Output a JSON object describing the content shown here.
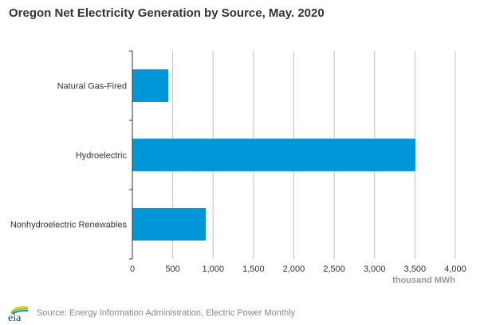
{
  "chart_data": {
    "type": "bar",
    "orientation": "horizontal",
    "title": "Oregon Net Electricity Generation by Source, May. 2020",
    "categories": [
      "Natural Gas-Fired",
      "Hydroelectric",
      "Nonhydroelectric Renewables"
    ],
    "values": [
      445,
      3505,
      910
    ],
    "xlabel": "thousand MWh",
    "ylabel": "",
    "xlim": [
      0,
      4000
    ],
    "xticks": [
      0,
      500,
      1000,
      1500,
      2000,
      2500,
      3000,
      3500,
      4000
    ],
    "xtick_labels": [
      "0",
      "500",
      "1,000",
      "1,500",
      "2,000",
      "2,500",
      "3,000",
      "3,500",
      "4,000"
    ],
    "grid": true,
    "bar_color": "#0096d7",
    "grid_color": "#c0c0c0"
  },
  "footer": {
    "logo_text": "eia",
    "source": "Source: Energy Information Administration, Electric Power Monthly"
  }
}
